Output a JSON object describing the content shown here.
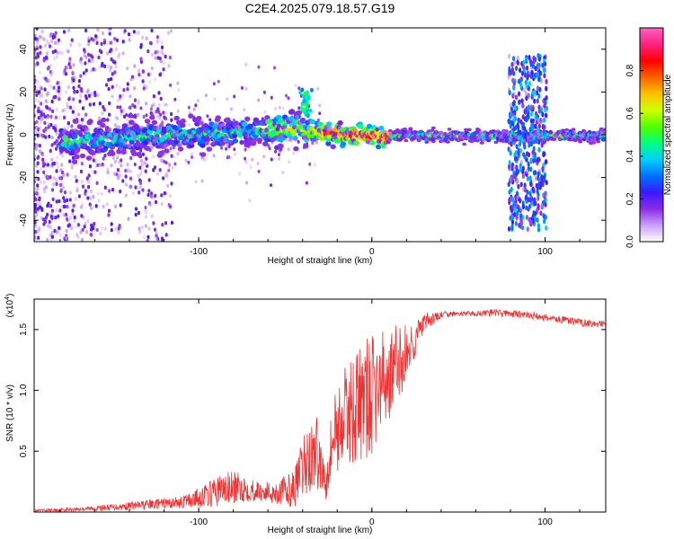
{
  "figure": {
    "title": "C2E4.2025.079.18.57.G19"
  },
  "chart_data": [
    {
      "type": "heatmap",
      "xlabel": "Height of straight line (km)",
      "ylabel": "Frequency (Hz)",
      "xlim": [
        -195,
        135
      ],
      "ylim": [
        -50,
        50
      ],
      "xticks": [
        -100,
        0,
        100
      ],
      "yticks": [
        -40,
        -20,
        0,
        20,
        40
      ],
      "colorbar": {
        "label": "Normalized spectral amplitude",
        "range": [
          0,
          1
        ],
        "ticks": [
          "0.0",
          "0.2",
          "0.4",
          "0.6",
          "0.8"
        ],
        "colormap": [
          "#ffffff",
          "#c8a0ff",
          "#8a2be2",
          "#3a1aff",
          "#0070ff",
          "#00d0ff",
          "#00ff80",
          "#50ff00",
          "#d0ff00",
          "#ffc000",
          "#ff6000",
          "#ff0000",
          "#ff2080",
          "#ff60c0"
        ]
      },
      "features": [
        {
          "name": "carrier",
          "x_range": [
            -180,
            135
          ],
          "freq": 0
        },
        {
          "name": "burst",
          "x": -38,
          "freq": 18
        },
        {
          "name": "vertical band",
          "x_range": [
            79,
            101
          ],
          "freq_range": [
            -45,
            37
          ]
        }
      ]
    },
    {
      "type": "line",
      "xlabel": "Height of straight line (km)",
      "ylabel": "SNR (10 * v/v)",
      "yscale_label": "(x10",
      "yscale_exp": "4",
      "xlim": [
        -195,
        135
      ],
      "ylim": [
        0,
        1.75
      ],
      "xticks": [
        -100,
        0,
        100
      ],
      "yticks": [
        "0.5",
        "1.0",
        "1.5"
      ],
      "color": "#ee3333",
      "envelope": {
        "x": [
          -195,
          -160,
          -130,
          -110,
          -95,
          -85,
          -75,
          -65,
          -55,
          -45,
          -38,
          -32,
          -27,
          -22,
          -15,
          -8,
          0,
          8,
          15,
          22,
          30,
          40,
          50,
          60,
          70,
          80,
          90,
          100,
          110,
          120,
          135
        ],
        "mean": [
          0.01,
          0.03,
          0.06,
          0.08,
          0.14,
          0.19,
          0.2,
          0.17,
          0.16,
          0.19,
          0.4,
          0.5,
          0.28,
          0.65,
          0.8,
          0.88,
          0.95,
          1.1,
          1.2,
          1.35,
          1.55,
          1.62,
          1.63,
          1.63,
          1.64,
          1.63,
          1.62,
          1.6,
          1.58,
          1.56,
          1.54
        ],
        "amp": [
          0.01,
          0.02,
          0.04,
          0.05,
          0.1,
          0.15,
          0.12,
          0.08,
          0.1,
          0.15,
          0.3,
          0.3,
          0.2,
          0.35,
          0.4,
          0.5,
          0.5,
          0.4,
          0.35,
          0.2,
          0.08,
          0.03,
          0.02,
          0.02,
          0.03,
          0.03,
          0.03,
          0.03,
          0.03,
          0.03,
          0.03
        ]
      }
    }
  ]
}
